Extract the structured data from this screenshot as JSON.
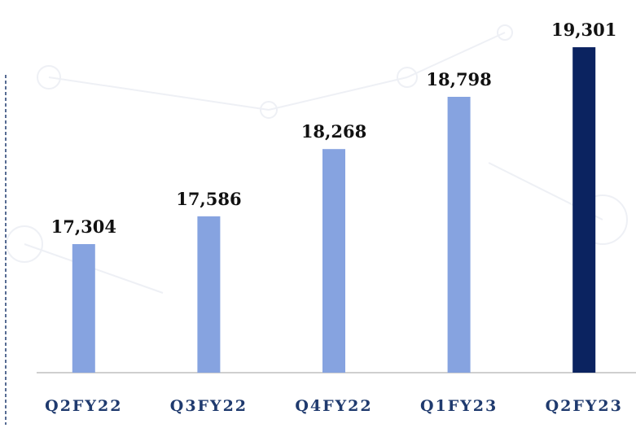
{
  "chart_data": {
    "type": "bar",
    "categories": [
      "Q2FY22",
      "Q3FY22",
      "Q4FY22",
      "Q1FY23",
      "Q2FY23"
    ],
    "values": [
      17304,
      17586,
      18268,
      18798,
      19301
    ],
    "value_labels": [
      "17,304",
      "17,586",
      "18,268",
      "18,798",
      "19,301"
    ],
    "colors": [
      "#86a3e0",
      "#86a3e0",
      "#86a3e0",
      "#86a3e0",
      "#0b2360"
    ],
    "ylim": [
      16000,
      19780
    ]
  }
}
